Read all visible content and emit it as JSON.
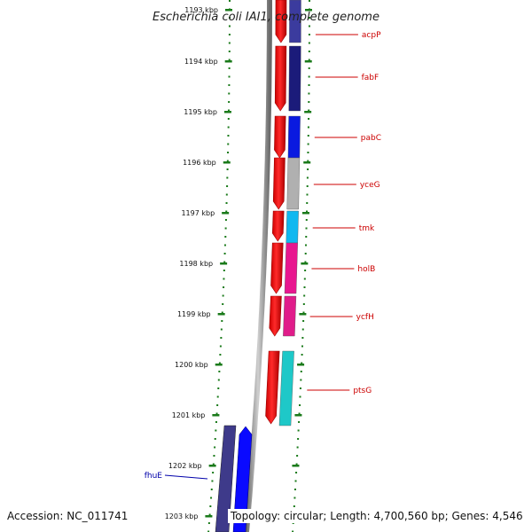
{
  "title": "Escherichia coli IAI1, complete genome",
  "accession": "Accession: NC_011741",
  "topology": "Topology: circular; Length: 4,700,560 bp; Genes: 4,546",
  "colors": {
    "scale_dots": "#1a7a1a",
    "backbone": "#8a8a8a",
    "label_red": "#cc0000",
    "label_blue": "#0000aa"
  },
  "scale": {
    "unit": "kbp",
    "ticks": [
      1193,
      1194,
      1195,
      1196,
      1197,
      1198,
      1199,
      1200,
      1201,
      1202,
      1203
    ],
    "labels": [
      "1193 kbp",
      "1194 kbp",
      "1195 kbp",
      "1196 kbp",
      "1197 kbp",
      "1198 kbp",
      "1199 kbp",
      "1200 kbp",
      "1201 kbp",
      "1202 kbp",
      "1203 kbp"
    ]
  },
  "genes": [
    {
      "name": "acpP",
      "color": "#3b3b9e",
      "strand": "-"
    },
    {
      "name": "fabF",
      "color": "#1b1b7a",
      "strand": "-"
    },
    {
      "name": "pabC",
      "color": "#0a1ae0",
      "strand": "-"
    },
    {
      "name": "yceG",
      "color": "#b0b0b0",
      "strand": "-"
    },
    {
      "name": "tmk",
      "color": "#10b8f0",
      "strand": "-"
    },
    {
      "name": "holB",
      "color": "#e8178f",
      "strand": "-"
    },
    {
      "name": "ycfH",
      "color": "#e01c8a",
      "strand": "-"
    },
    {
      "name": "ptsG",
      "color": "#1ec8c8",
      "strand": "-"
    },
    {
      "name": "fhuE",
      "color": "#3e3a8a",
      "strand": "+"
    }
  ]
}
